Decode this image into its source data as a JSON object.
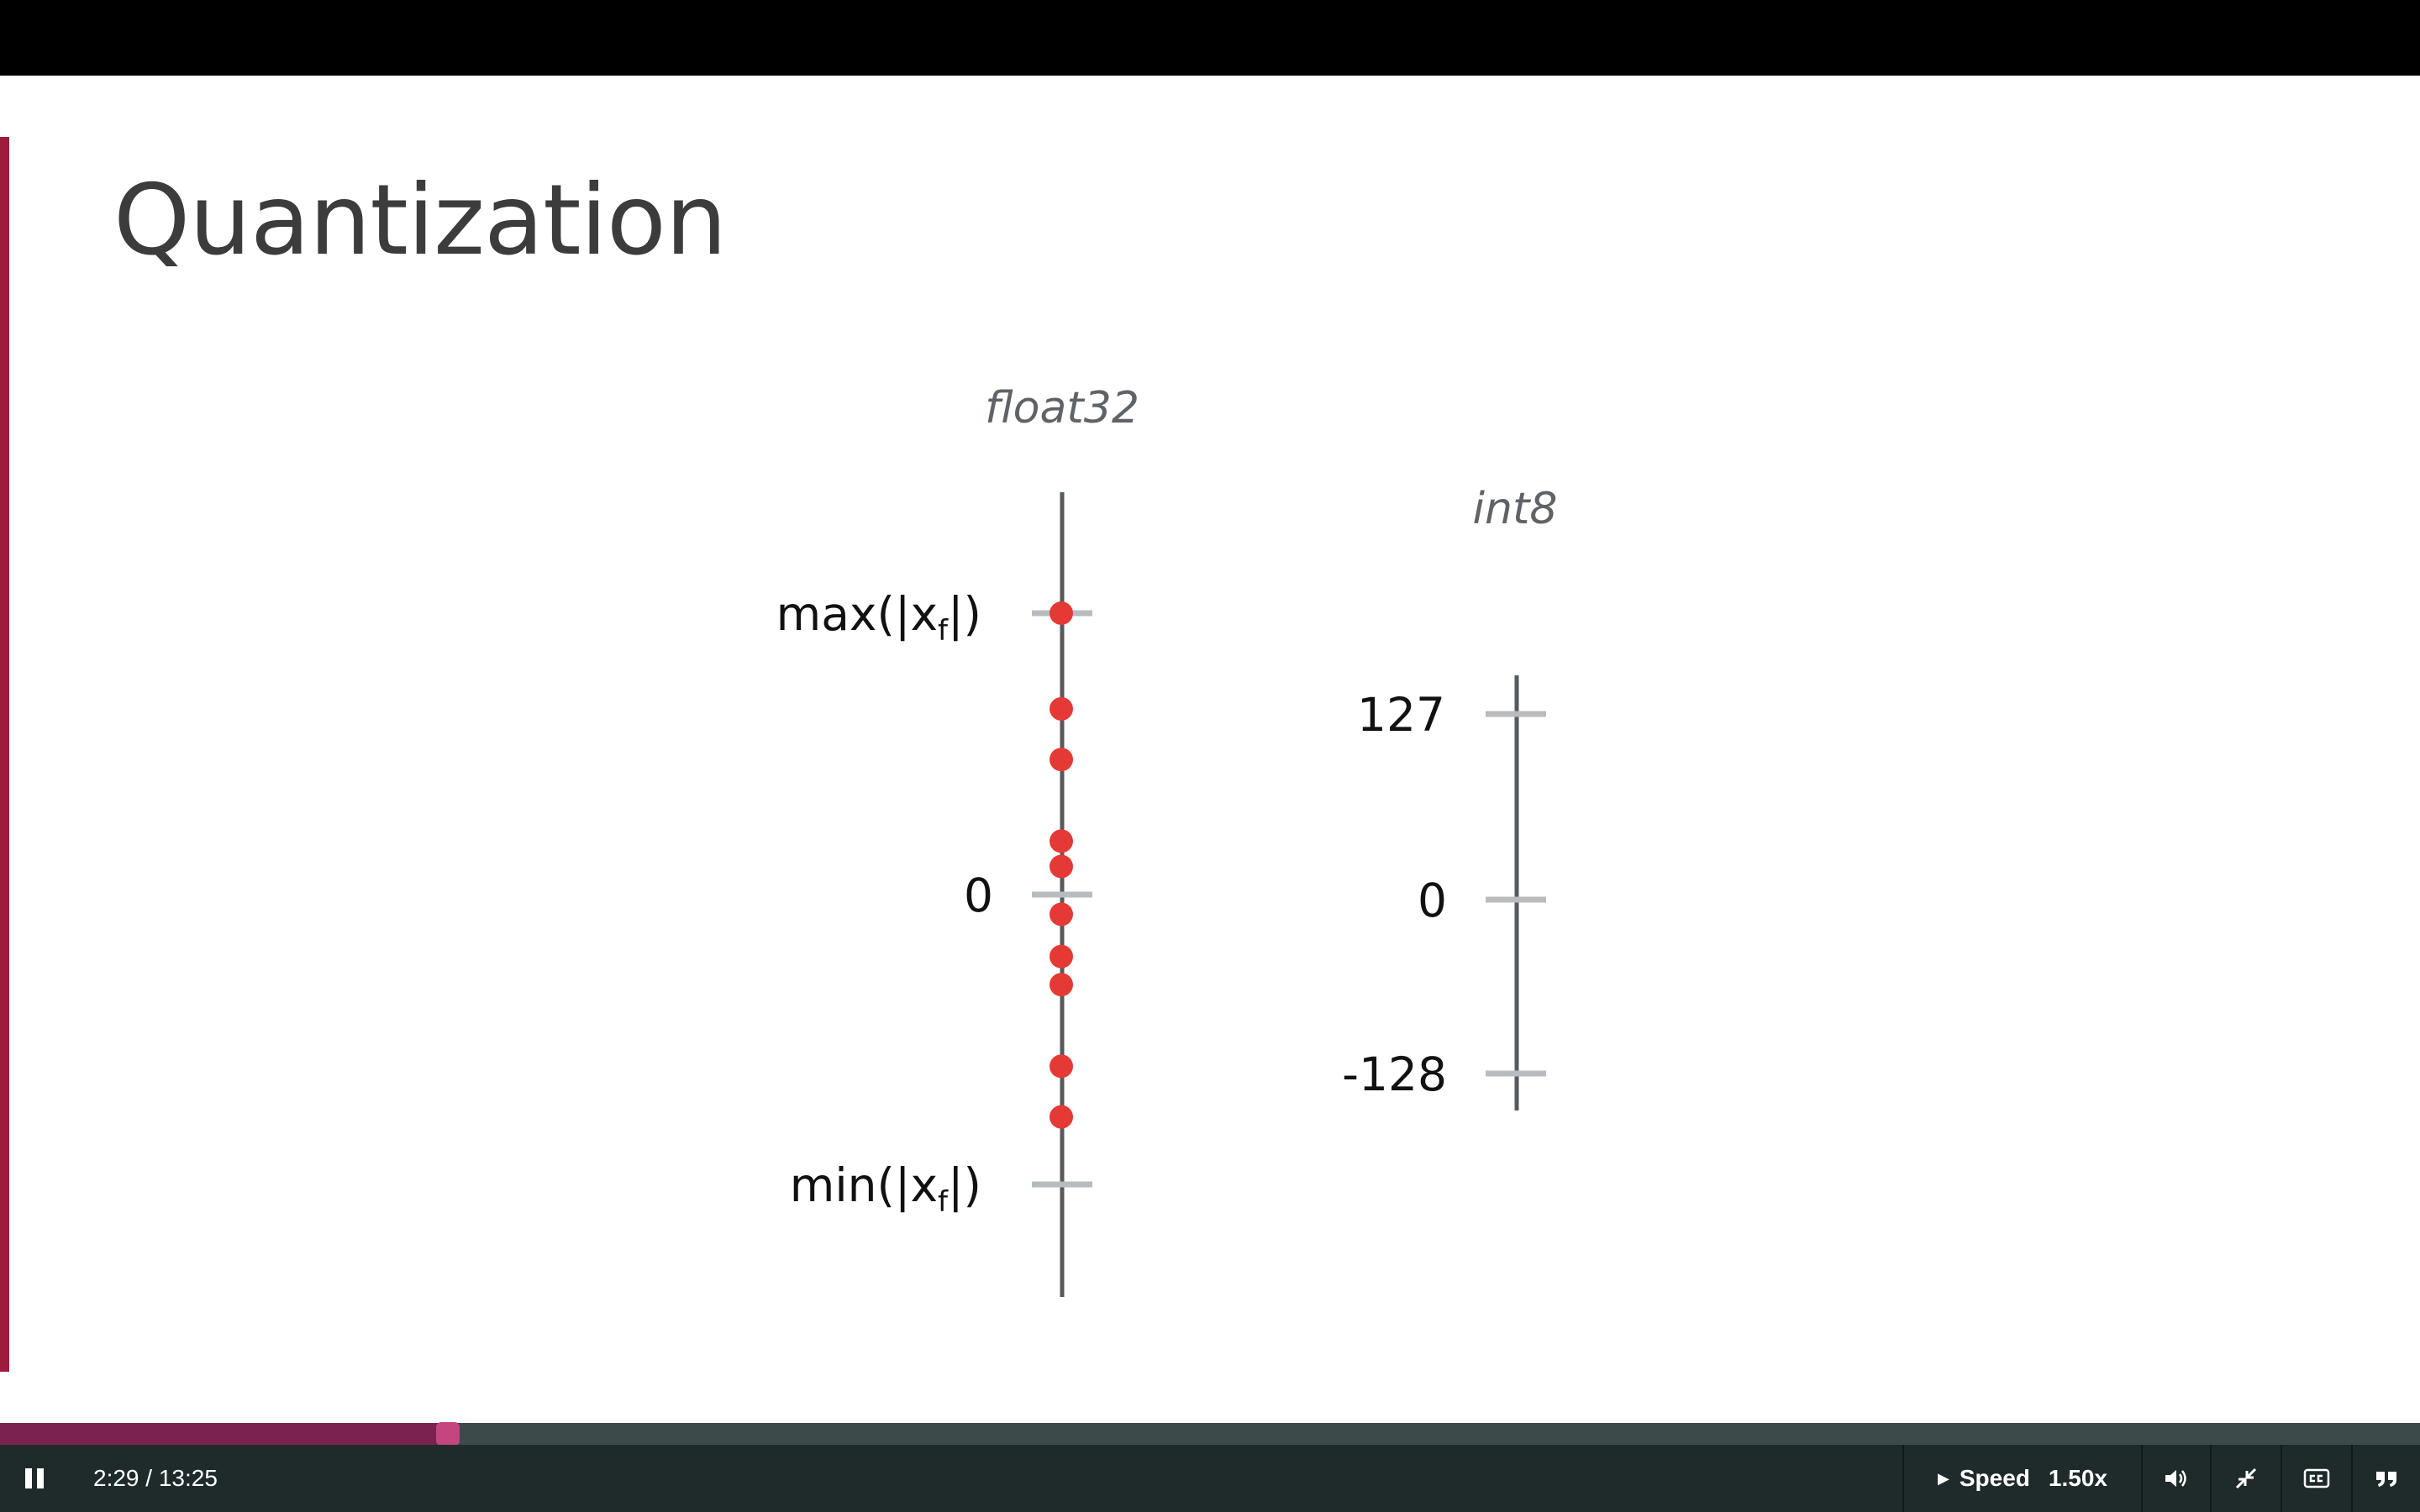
{
  "slide": {
    "title": "Quantization",
    "accent_color": "#9e1b3c"
  },
  "chart_data": {
    "type": "scatter",
    "title": "",
    "point_color": "#e53935",
    "axes": [
      {
        "name": "float32",
        "ticks": [
          {
            "label": "max(|x",
            "label_sub": "f",
            "label_end": "|)",
            "value": 1.0
          },
          {
            "label": "0",
            "value": 0.0
          },
          {
            "label": "min(|x",
            "label_sub": "f",
            "label_end": "|)",
            "value": -1.03
          }
        ],
        "points": [
          1.0,
          0.66,
          0.48,
          0.19,
          0.1,
          -0.07,
          -0.22,
          -0.32,
          -0.61,
          -0.79
        ],
        "ylim": [
          -1.45,
          1.45
        ]
      },
      {
        "name": "int8",
        "ticks": [
          {
            "label": "127",
            "value": 127
          },
          {
            "label": "0",
            "value": 0
          },
          {
            "label": "-128",
            "value": -128
          }
        ],
        "points": [],
        "ylim": [
          -144,
          143
        ]
      }
    ]
  },
  "player": {
    "time_display": "2:29 / 13:25",
    "progress_fraction": 0.185,
    "speed_label": "Speed",
    "speed_value": "1.50x",
    "icons": {
      "pause": "pause-icon",
      "volume": "volume-icon",
      "exit_fullscreen": "exit-fullscreen-icon",
      "cc": "closed-captions-icon",
      "transcript": "transcript-icon"
    }
  }
}
